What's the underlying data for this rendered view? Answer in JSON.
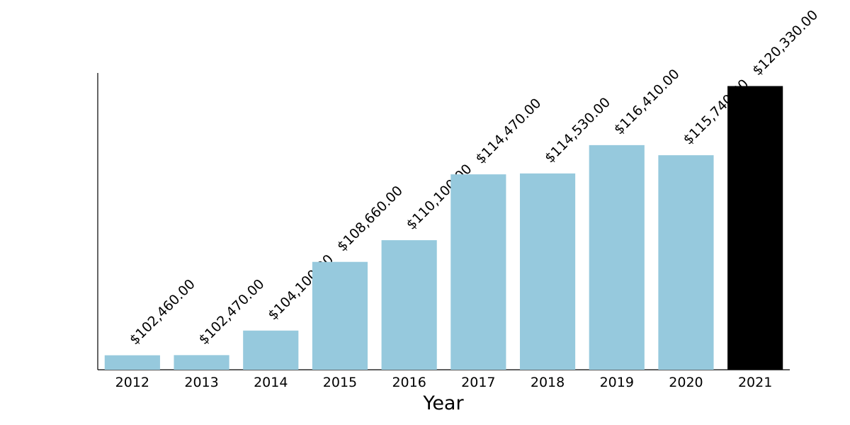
{
  "chart_data": {
    "type": "bar",
    "x_label": "Year",
    "categories": [
      "2012",
      "2013",
      "2014",
      "2015",
      "2016",
      "2017",
      "2018",
      "2019",
      "2020",
      "2021"
    ],
    "values": [
      102460,
      102470,
      104100,
      108660,
      110100,
      114470,
      114530,
      116410,
      115740,
      120330
    ],
    "value_labels": [
      "$102,460.00",
      "$102,470.00",
      "$104,100.00",
      "$108,660.00",
      "$110,100.00",
      "$114,470.00",
      "$114,530.00",
      "$116,410.00",
      "$115,740.00",
      "$120,330.00"
    ],
    "colors": [
      "#96c9dd",
      "#96c9dd",
      "#96c9dd",
      "#96c9dd",
      "#96c9dd",
      "#96c9dd",
      "#96c9dd",
      "#96c9dd",
      "#96c9dd",
      "#000000"
    ],
    "ylim": [
      101500,
      121200
    ]
  }
}
